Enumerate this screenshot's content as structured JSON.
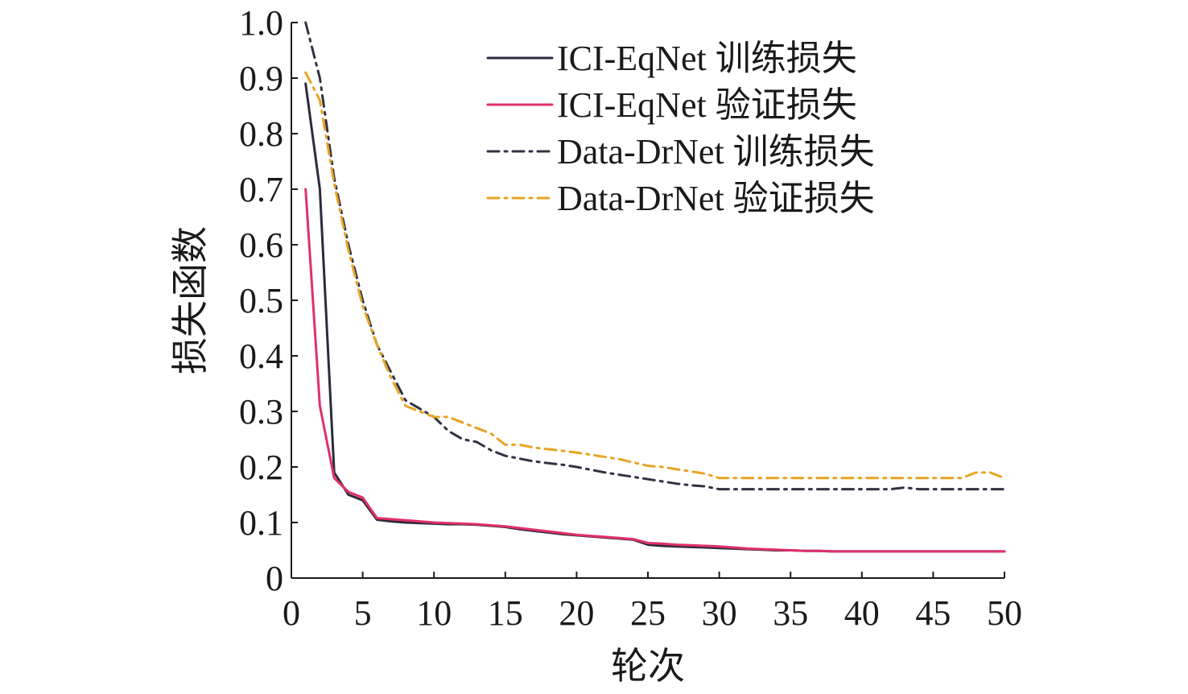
{
  "chart_data": {
    "type": "line",
    "xlabel": "轮次",
    "ylabel": "损失函数",
    "xlim": [
      0,
      50
    ],
    "ylim": [
      0,
      1.0
    ],
    "xticks": [
      0,
      5,
      10,
      15,
      20,
      25,
      30,
      35,
      40,
      45,
      50
    ],
    "xtick_labels": [
      "0",
      "5",
      "10",
      "15",
      "20",
      "25",
      "30",
      "35",
      "40",
      "45",
      "50"
    ],
    "yticks": [
      0,
      0.1,
      0.2,
      0.3,
      0.4,
      0.5,
      0.6,
      0.7,
      0.8,
      0.9,
      1.0
    ],
    "ytick_labels": [
      "0",
      "0.1",
      "0.2",
      "0.3",
      "0.4",
      "0.5",
      "0.6",
      "0.7",
      "0.8",
      "0.9",
      "1.0"
    ],
    "grid": false,
    "legend_position": "top-right",
    "series": [
      {
        "name": "ICI-EqNet 训练损失",
        "color": "#2b2b3c",
        "dash": "solid",
        "x": [
          1,
          2,
          3,
          4,
          5,
          6,
          7,
          8,
          9,
          10,
          11,
          12,
          13,
          14,
          15,
          16,
          17,
          18,
          19,
          20,
          21,
          22,
          23,
          24,
          25,
          26,
          27,
          28,
          29,
          30,
          31,
          32,
          33,
          34,
          35,
          36,
          37,
          38,
          39,
          40,
          41,
          42,
          43,
          44,
          45,
          46,
          47,
          48,
          49,
          50
        ],
        "y": [
          0.89,
          0.7,
          0.19,
          0.15,
          0.14,
          0.105,
          0.102,
          0.1,
          0.099,
          0.098,
          0.097,
          0.097,
          0.096,
          0.094,
          0.092,
          0.088,
          0.085,
          0.082,
          0.079,
          0.077,
          0.075,
          0.073,
          0.071,
          0.069,
          0.06,
          0.058,
          0.057,
          0.056,
          0.055,
          0.054,
          0.053,
          0.052,
          0.051,
          0.05,
          0.05,
          0.049,
          0.049,
          0.048,
          0.048,
          0.048,
          0.048,
          0.048,
          0.048,
          0.048,
          0.048,
          0.048,
          0.048,
          0.048,
          0.048,
          0.048
        ]
      },
      {
        "name": "ICI-EqNet 验证损失",
        "color": "#e0306a",
        "dash": "solid",
        "x": [
          1,
          2,
          3,
          4,
          5,
          6,
          7,
          8,
          9,
          10,
          11,
          12,
          13,
          14,
          15,
          16,
          17,
          18,
          19,
          20,
          21,
          22,
          23,
          24,
          25,
          26,
          27,
          28,
          29,
          30,
          31,
          32,
          33,
          34,
          35,
          36,
          37,
          38,
          39,
          40,
          41,
          42,
          43,
          44,
          45,
          46,
          47,
          48,
          49,
          50
        ],
        "y": [
          0.7,
          0.31,
          0.18,
          0.155,
          0.145,
          0.108,
          0.106,
          0.104,
          0.102,
          0.1,
          0.099,
          0.098,
          0.097,
          0.095,
          0.093,
          0.09,
          0.087,
          0.084,
          0.081,
          0.078,
          0.076,
          0.074,
          0.072,
          0.07,
          0.063,
          0.062,
          0.06,
          0.059,
          0.058,
          0.057,
          0.055,
          0.053,
          0.052,
          0.051,
          0.05,
          0.049,
          0.049,
          0.048,
          0.048,
          0.048,
          0.048,
          0.048,
          0.048,
          0.048,
          0.048,
          0.048,
          0.048,
          0.048,
          0.048,
          0.048
        ]
      },
      {
        "name": "Data-DrNet 训练损失",
        "color": "#2f3342",
        "dash": "dashdot",
        "x": [
          1,
          2,
          3,
          4,
          5,
          6,
          7,
          8,
          9,
          10,
          11,
          12,
          13,
          14,
          15,
          16,
          17,
          18,
          19,
          20,
          21,
          22,
          23,
          24,
          25,
          26,
          27,
          28,
          29,
          30,
          31,
          32,
          33,
          34,
          35,
          36,
          37,
          38,
          39,
          40,
          41,
          42,
          43,
          44,
          45,
          46,
          47,
          48,
          49,
          50
        ],
        "y": [
          1.0,
          0.9,
          0.72,
          0.6,
          0.5,
          0.42,
          0.37,
          0.32,
          0.305,
          0.29,
          0.265,
          0.25,
          0.245,
          0.23,
          0.22,
          0.215,
          0.21,
          0.207,
          0.204,
          0.2,
          0.195,
          0.19,
          0.186,
          0.182,
          0.178,
          0.174,
          0.17,
          0.167,
          0.165,
          0.16,
          0.16,
          0.16,
          0.16,
          0.16,
          0.16,
          0.16,
          0.16,
          0.16,
          0.16,
          0.16,
          0.16,
          0.16,
          0.163,
          0.16,
          0.16,
          0.16,
          0.16,
          0.16,
          0.16,
          0.16
        ]
      },
      {
        "name": "Data-DrNet 验证损失",
        "color": "#e8a424",
        "dash": "dashdot",
        "x": [
          1,
          2,
          3,
          4,
          5,
          6,
          7,
          8,
          9,
          10,
          11,
          12,
          13,
          14,
          15,
          16,
          17,
          18,
          19,
          20,
          21,
          22,
          23,
          24,
          25,
          26,
          27,
          28,
          29,
          30,
          31,
          32,
          33,
          34,
          35,
          36,
          37,
          38,
          39,
          40,
          41,
          42,
          43,
          44,
          45,
          46,
          47,
          48,
          49,
          50
        ],
        "y": [
          0.91,
          0.86,
          0.71,
          0.59,
          0.49,
          0.42,
          0.36,
          0.31,
          0.3,
          0.29,
          0.29,
          0.28,
          0.27,
          0.26,
          0.24,
          0.24,
          0.235,
          0.232,
          0.229,
          0.226,
          0.222,
          0.218,
          0.214,
          0.208,
          0.202,
          0.2,
          0.196,
          0.192,
          0.188,
          0.18,
          0.18,
          0.18,
          0.18,
          0.18,
          0.18,
          0.18,
          0.18,
          0.18,
          0.18,
          0.18,
          0.18,
          0.18,
          0.18,
          0.18,
          0.18,
          0.18,
          0.18,
          0.19,
          0.19,
          0.18
        ]
      }
    ]
  }
}
